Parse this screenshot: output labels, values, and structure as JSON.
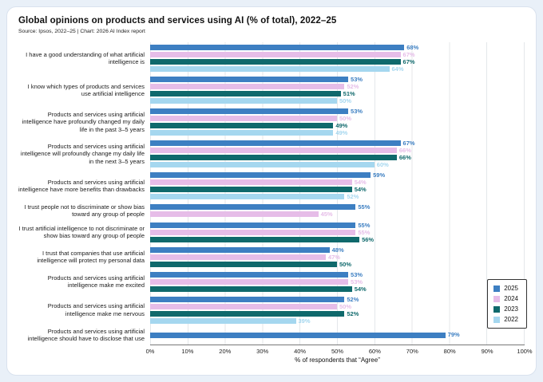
{
  "header": {
    "title": "Global opinions on products and services using AI (% of total), 2022–25",
    "source": "Source: Ipsos, 2022–25 | Chart: 2026 AI Index report"
  },
  "chart_data": {
    "type": "bar",
    "orientation": "horizontal",
    "title": "Global opinions on products and services using AI (% of total), 2022–25",
    "xlabel": "% of respondents that “Agree”",
    "xlim": [
      0,
      100
    ],
    "grid": true,
    "legend_position": "bottom-right",
    "x_ticks": [
      "0%",
      "10%",
      "20%",
      "30%",
      "40%",
      "50%",
      "60%",
      "70%",
      "80%",
      "90%",
      "100%"
    ],
    "legend": [
      {
        "name": "2025",
        "color": "#3d7fc2"
      },
      {
        "name": "2024",
        "color": "#e6bde8"
      },
      {
        "name": "2023",
        "color": "#0f696c"
      },
      {
        "name": "2022",
        "color": "#a5d7ef"
      }
    ],
    "categories": [
      "I have a good understanding of what artificial intelligence is",
      "I know which types of products and services use artificial intelligence",
      "Products and services using artificial intelligence have profoundly changed my daily life in the past 3–5 years",
      "Products and services using artificial intelligence will profoundly change my daily life in the next 3–5 years",
      "Products and services using artificial intelligence have more benefits than drawbacks",
      "I trust people not to discriminate or show bias toward any group of people",
      "I trust artificial intelligence to not discriminate or show bias toward any group of people",
      "I trust that companies that use artificial intelligence will protect my personal data",
      "Products and services using artificial intelligence make me excited",
      "Products and services using artificial intelligence make me nervous",
      "Products and services using artificial intelligence should have to disclose that use"
    ],
    "series": [
      {
        "name": "2025",
        "values": [
          68,
          53,
          53,
          67,
          59,
          55,
          55,
          48,
          53,
          52,
          79
        ]
      },
      {
        "name": "2024",
        "values": [
          67,
          52,
          50,
          66,
          54,
          45,
          55,
          47,
          53,
          50,
          null
        ]
      },
      {
        "name": "2023",
        "values": [
          67,
          51,
          49,
          66,
          54,
          null,
          56,
          50,
          54,
          52,
          null
        ]
      },
      {
        "name": "2022",
        "values": [
          64,
          50,
          49,
          60,
          52,
          null,
          null,
          null,
          null,
          39,
          null
        ]
      }
    ]
  }
}
